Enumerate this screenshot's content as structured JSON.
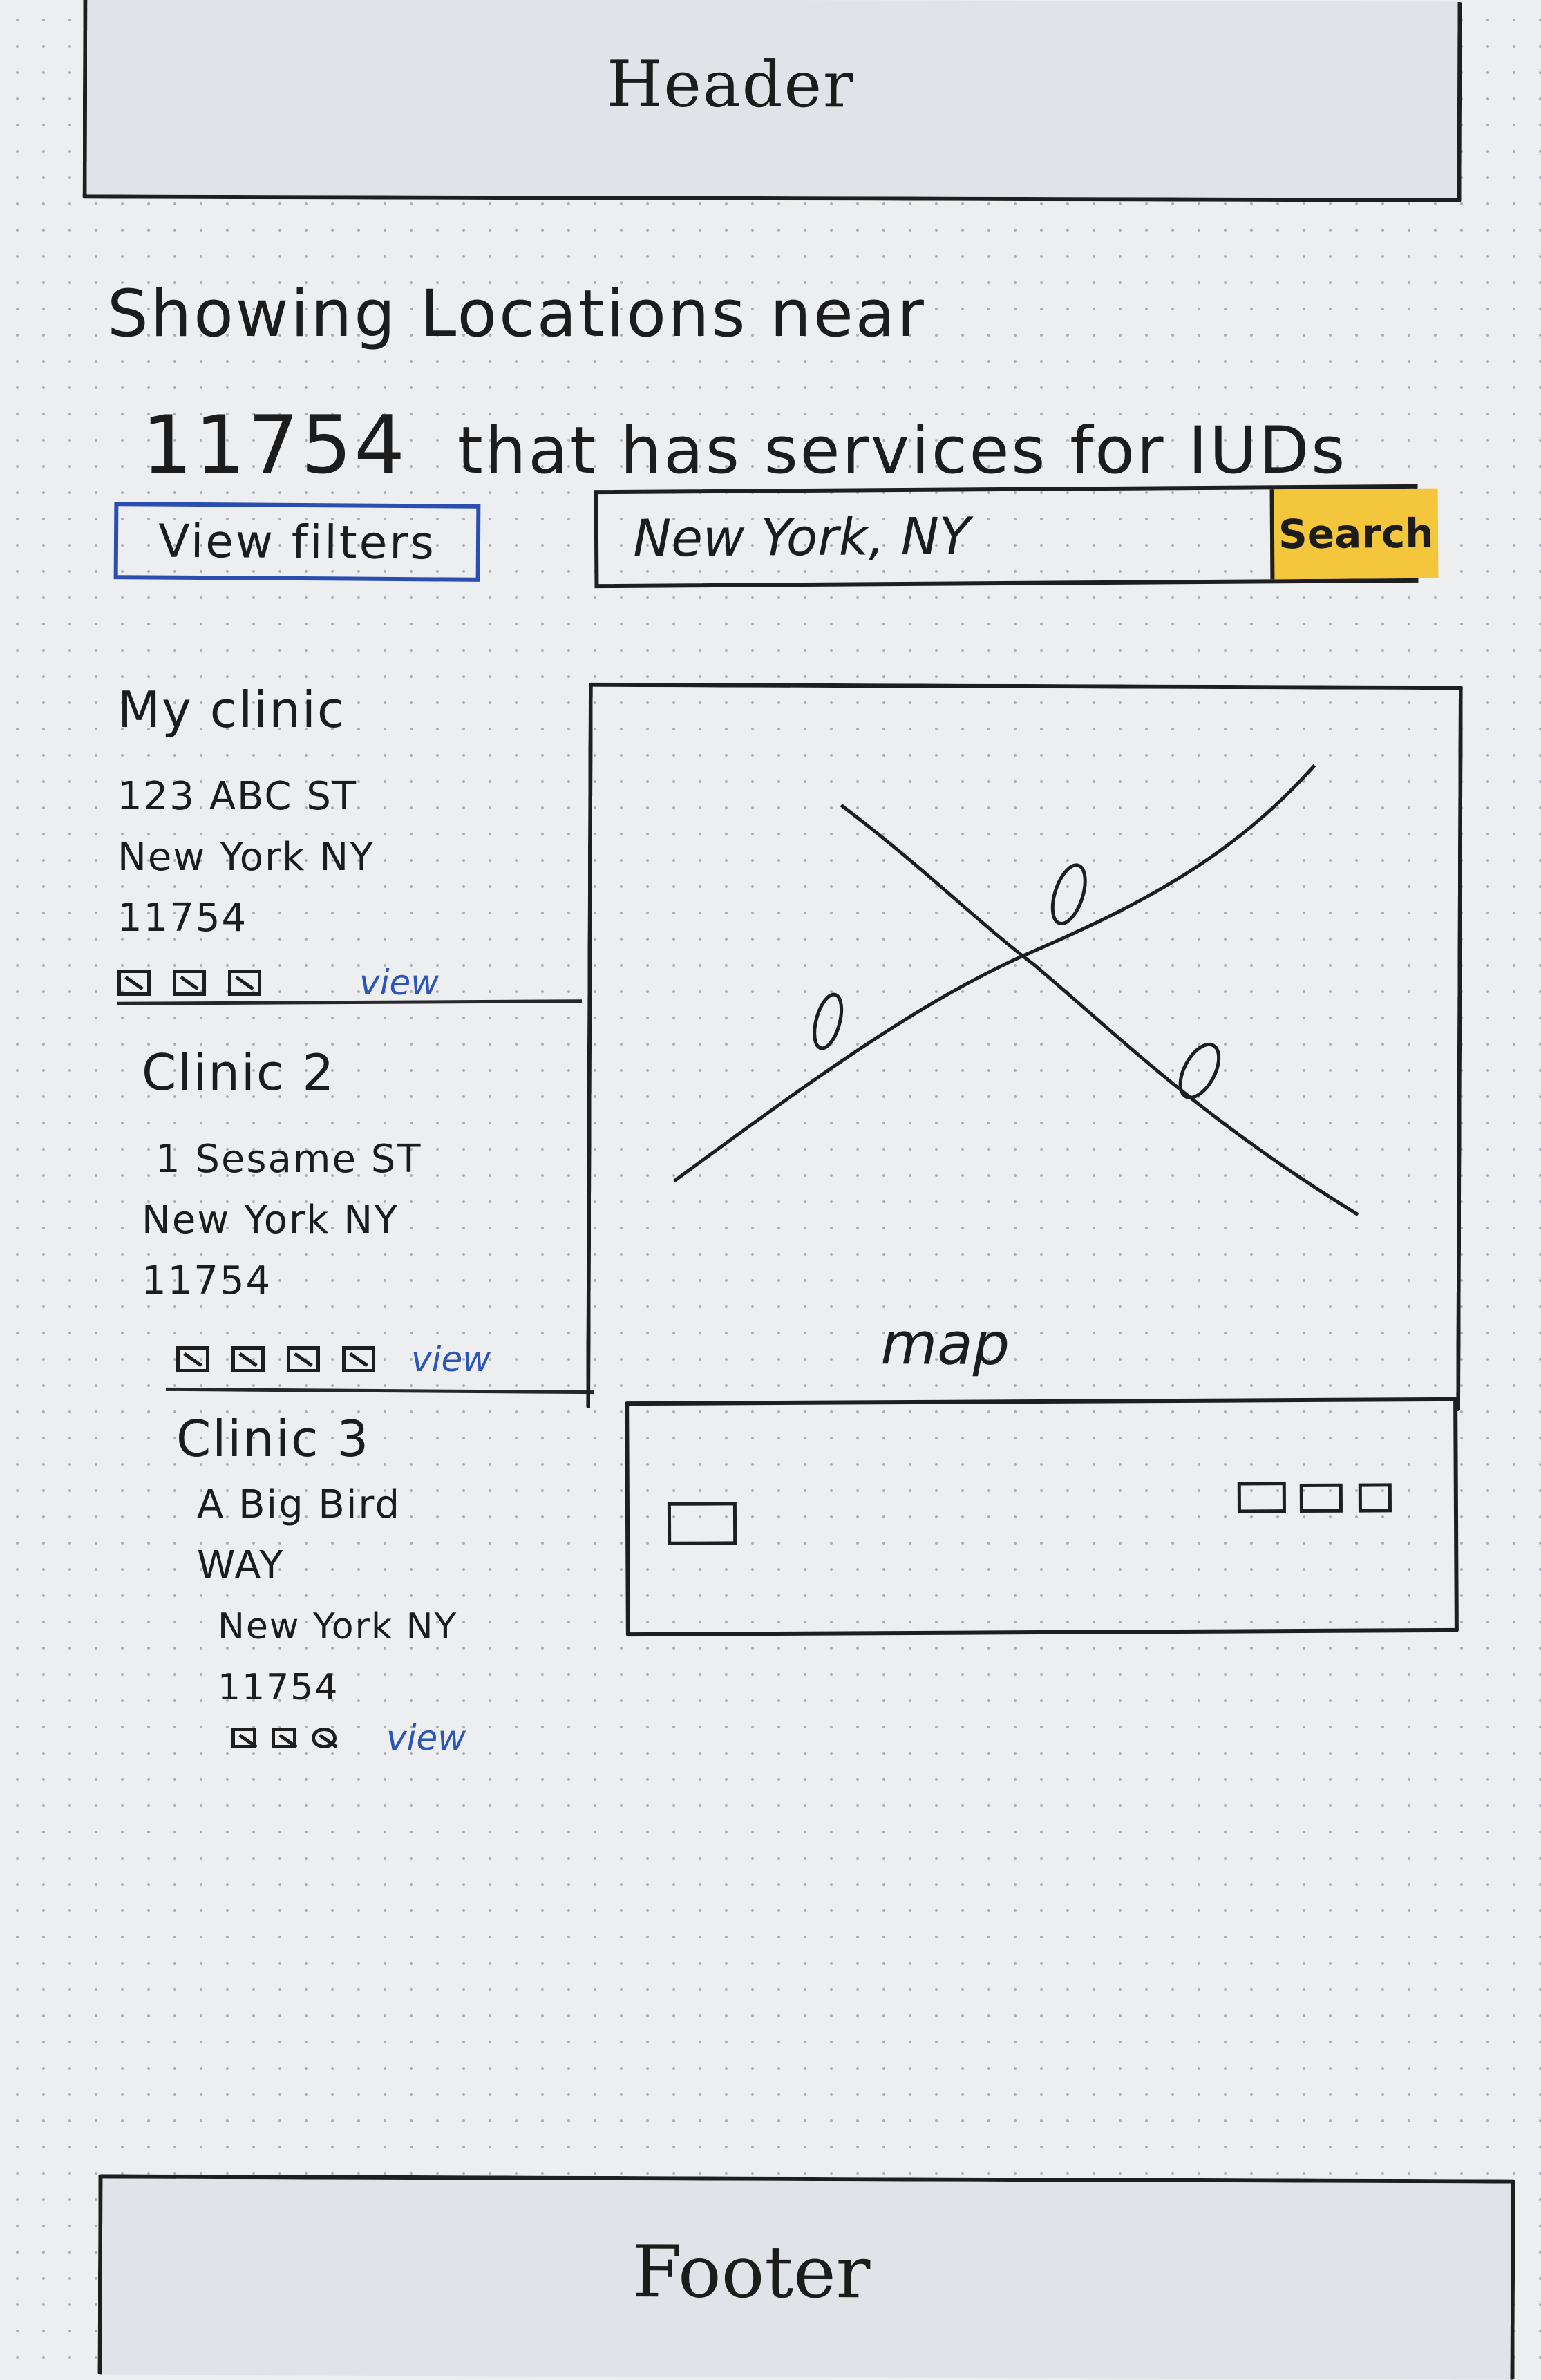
{
  "header": {
    "label": "Header"
  },
  "title": {
    "line1": "Showing Locations near",
    "zip": "11754",
    "line2": "that has services for IUDs"
  },
  "filters": {
    "button_label": "View filters"
  },
  "search": {
    "value": "New York, NY",
    "button_label": "Search"
  },
  "clinics": [
    {
      "name": "My clinic",
      "address_line1": "123 ABC ST",
      "address_line2": "New York NY 11754",
      "services": 3,
      "view_label": "view"
    },
    {
      "name": "Clinic 2",
      "address_line1": "1 Sesame ST",
      "address_line2": "New York NY 11754",
      "services": 4,
      "view_label": "view"
    },
    {
      "name": "Clinic 3",
      "address_line1": "A Big Bird WAY",
      "address_line2": "New York NY 11754",
      "services": 3,
      "view_label": "view"
    }
  ],
  "map": {
    "label": "map"
  },
  "footer": {
    "label": "Footer"
  },
  "colors": {
    "paper": "#eceef0",
    "ink": "#1e1e1e",
    "accent_blue": "#2b4fb0",
    "search_yellow": "#f4c63c"
  }
}
